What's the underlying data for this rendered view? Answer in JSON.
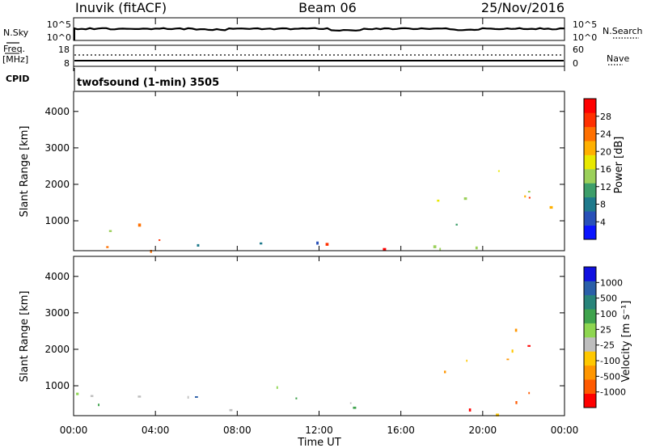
{
  "header": {
    "station": "Inuvik (fitACF)",
    "beam": "Beam 06",
    "date": "25/Nov/2016"
  },
  "noise_panel": {
    "left_label": "N.Sky",
    "right_label": "N.Search",
    "left_ticks": [
      "10^5",
      "10^0"
    ],
    "right_ticks": [
      "10^5",
      "10^0"
    ]
  },
  "freq_panel": {
    "left_label_1": "Freq.",
    "left_label_2": "[MHz]",
    "right_label": "Nave",
    "left_ticks": [
      "18",
      "8"
    ],
    "right_ticks": [
      "60",
      "0"
    ]
  },
  "cpid": {
    "label": "CPID",
    "text": "twofsound (1-min) 3505"
  },
  "colors": {
    "power": [
      "#0a14ff",
      "#2850b8",
      "#1f7a8c",
      "#3d9e6a",
      "#9bd05a",
      "#e8e800",
      "#ffb000",
      "#ff7000",
      "#ff3000",
      "#ff0000"
    ],
    "velocity": [
      "#ff0000",
      "#ff5a00",
      "#ff9600",
      "#ffc800",
      "#bebebe",
      "#8ed650",
      "#3fa34d",
      "#28847a",
      "#2a5fa8",
      "#1010e0"
    ]
  },
  "chart_data": [
    {
      "type": "heatmap",
      "name": "power",
      "ylabel": "Slant Range [km]",
      "yticks": [
        1000,
        2000,
        3000,
        4000
      ],
      "ylim": [
        180,
        4550
      ],
      "xlim": [
        0,
        24
      ],
      "colorbar": {
        "label": "Power [dB]",
        "ticks": [
          "4",
          "8",
          "12",
          "16",
          "20",
          "24",
          "28"
        ],
        "range": [
          0,
          32
        ]
      },
      "regions": [
        {
          "t0": 0.0,
          "t1": 5.8,
          "r0": 200,
          "r1": 900,
          "level": "high"
        },
        {
          "t0": 2.3,
          "t1": 3.6,
          "r0": 350,
          "r1": 1050,
          "level": "high"
        },
        {
          "t0": 0.6,
          "t1": 1.8,
          "r0": 500,
          "r1": 2100,
          "level": "medium"
        },
        {
          "t0": 6.0,
          "t1": 12.0,
          "r0": 200,
          "r1": 1000,
          "level": "medium"
        },
        {
          "t0": 12.0,
          "t1": 16.2,
          "r0": 200,
          "r1": 900,
          "level": "high"
        },
        {
          "t0": 16.2,
          "t1": 24.0,
          "r0": 200,
          "r1": 950,
          "level": "medium"
        },
        {
          "t0": 17.0,
          "t1": 23.5,
          "r0": 1400,
          "r1": 2600,
          "level": "medium"
        },
        {
          "t0": 21.5,
          "t1": 22.5,
          "r0": 500,
          "r1": 1700,
          "level": "high"
        }
      ]
    },
    {
      "type": "heatmap",
      "name": "velocity",
      "xlabel": "Time UT",
      "ylabel": "Slant Range [km]",
      "xticks": [
        "00:00",
        "04:00",
        "08:00",
        "12:00",
        "16:00",
        "20:00",
        "00:00"
      ],
      "yticks": [
        1000,
        2000,
        3000,
        4000
      ],
      "ylim": [
        180,
        4550
      ],
      "xlim": [
        0,
        24
      ],
      "colorbar": {
        "label": "Velocity [m s⁻¹]",
        "ticks": [
          "-1000",
          "-500",
          "-100",
          "-25",
          "25",
          "100",
          "500",
          "1000"
        ],
        "range": [
          -1500,
          1500
        ]
      },
      "regions": [
        {
          "t0": 0.0,
          "t1": 6.0,
          "r0": 200,
          "r1": 950,
          "level": "toward"
        },
        {
          "t0": 2.0,
          "t1": 6.0,
          "r0": 300,
          "r1": 1000,
          "level": "zero"
        },
        {
          "t0": 0.6,
          "t1": 1.8,
          "r0": 500,
          "r1": 2100,
          "level": "toward"
        },
        {
          "t0": 6.0,
          "t1": 12.0,
          "r0": 200,
          "r1": 1000,
          "level": "toward"
        },
        {
          "t0": 12.0,
          "t1": 16.2,
          "r0": 200,
          "r1": 900,
          "level": "toward"
        },
        {
          "t0": 16.2,
          "t1": 24.0,
          "r0": 200,
          "r1": 900,
          "level": "away"
        },
        {
          "t0": 17.0,
          "t1": 23.5,
          "r0": 1400,
          "r1": 2600,
          "level": "away"
        }
      ]
    }
  ]
}
